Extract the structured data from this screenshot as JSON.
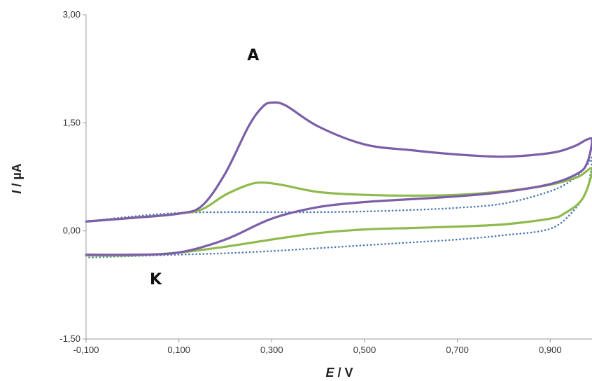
{
  "chart_data": {
    "type": "line",
    "title": "",
    "xlabel_italic": "E",
    "xlabel_rest": " / V",
    "ylabel_italic": "I",
    "ylabel_rest": " / µA",
    "xlim": [
      -0.1,
      0.99
    ],
    "ylim": [
      -1.5,
      3.0
    ],
    "xticks": [
      -0.1,
      0.1,
      0.3,
      0.5,
      0.7,
      0.9
    ],
    "xtick_labels": [
      "-0,100",
      "0,100",
      "0,300",
      "0,500",
      "0,700",
      "0,900"
    ],
    "yticks": [
      -1.5,
      0.0,
      1.5,
      3.0
    ],
    "ytick_labels": [
      "-1,50",
      "0,00",
      "1,50",
      "3,00"
    ],
    "grid": false,
    "legend": "none",
    "annotations": [
      {
        "text": "A",
        "x": 0.26,
        "y": 2.37
      },
      {
        "text": "K",
        "x": 0.05,
        "y": -0.74
      }
    ],
    "series": [
      {
        "color": "#7b5ea7",
        "style": "solid",
        "forward": [
          [
            -0.1,
            0.13
          ],
          [
            0.0,
            0.18
          ],
          [
            0.1,
            0.24
          ],
          [
            0.15,
            0.35
          ],
          [
            0.2,
            0.8
          ],
          [
            0.25,
            1.45
          ],
          [
            0.28,
            1.72
          ],
          [
            0.3,
            1.78
          ],
          [
            0.33,
            1.74
          ],
          [
            0.4,
            1.45
          ],
          [
            0.5,
            1.2
          ],
          [
            0.6,
            1.12
          ],
          [
            0.7,
            1.06
          ],
          [
            0.8,
            1.03
          ],
          [
            0.9,
            1.08
          ],
          [
            0.95,
            1.17
          ],
          [
            0.98,
            1.27
          ],
          [
            0.99,
            1.25
          ]
        ],
        "reverse": [
          [
            0.99,
            1.2
          ],
          [
            0.98,
            0.95
          ],
          [
            0.96,
            0.8
          ],
          [
            0.9,
            0.65
          ],
          [
            0.8,
            0.54
          ],
          [
            0.7,
            0.48
          ],
          [
            0.6,
            0.44
          ],
          [
            0.5,
            0.4
          ],
          [
            0.4,
            0.33
          ],
          [
            0.3,
            0.17
          ],
          [
            0.2,
            -0.12
          ],
          [
            0.1,
            -0.3
          ],
          [
            0.0,
            -0.33
          ],
          [
            -0.1,
            -0.33
          ]
        ]
      },
      {
        "color": "#8fba4e",
        "style": "solid",
        "forward": [
          [
            -0.1,
            0.13
          ],
          [
            0.0,
            0.18
          ],
          [
            0.1,
            0.24
          ],
          [
            0.15,
            0.3
          ],
          [
            0.2,
            0.5
          ],
          [
            0.25,
            0.64
          ],
          [
            0.28,
            0.67
          ],
          [
            0.32,
            0.64
          ],
          [
            0.4,
            0.54
          ],
          [
            0.5,
            0.5
          ],
          [
            0.6,
            0.49
          ],
          [
            0.7,
            0.5
          ],
          [
            0.8,
            0.55
          ],
          [
            0.9,
            0.64
          ],
          [
            0.96,
            0.75
          ],
          [
            0.99,
            0.86
          ]
        ],
        "reverse": [
          [
            0.99,
            0.75
          ],
          [
            0.97,
            0.45
          ],
          [
            0.93,
            0.24
          ],
          [
            0.9,
            0.17
          ],
          [
            0.8,
            0.09
          ],
          [
            0.7,
            0.06
          ],
          [
            0.6,
            0.04
          ],
          [
            0.5,
            0.02
          ],
          [
            0.4,
            -0.03
          ],
          [
            0.3,
            -0.12
          ],
          [
            0.2,
            -0.22
          ],
          [
            0.1,
            -0.3
          ],
          [
            0.0,
            -0.34
          ],
          [
            -0.1,
            -0.34
          ]
        ]
      },
      {
        "color": "#4a78b5",
        "style": "dotted",
        "forward": [
          [
            -0.1,
            0.13
          ],
          [
            0.0,
            0.2
          ],
          [
            0.1,
            0.25
          ],
          [
            0.2,
            0.26
          ],
          [
            0.3,
            0.26
          ],
          [
            0.4,
            0.26
          ],
          [
            0.5,
            0.27
          ],
          [
            0.6,
            0.29
          ],
          [
            0.7,
            0.32
          ],
          [
            0.8,
            0.38
          ],
          [
            0.9,
            0.55
          ],
          [
            0.95,
            0.72
          ],
          [
            0.98,
            0.92
          ],
          [
            0.99,
            1.0
          ]
        ],
        "reverse": [
          [
            0.99,
            0.92
          ],
          [
            0.98,
            0.6
          ],
          [
            0.95,
            0.28
          ],
          [
            0.9,
            0.03
          ],
          [
            0.8,
            -0.06
          ],
          [
            0.7,
            -0.12
          ],
          [
            0.6,
            -0.16
          ],
          [
            0.5,
            -0.2
          ],
          [
            0.4,
            -0.24
          ],
          [
            0.3,
            -0.28
          ],
          [
            0.2,
            -0.31
          ],
          [
            0.1,
            -0.33
          ],
          [
            0.0,
            -0.35
          ],
          [
            -0.1,
            -0.37
          ]
        ]
      }
    ]
  }
}
